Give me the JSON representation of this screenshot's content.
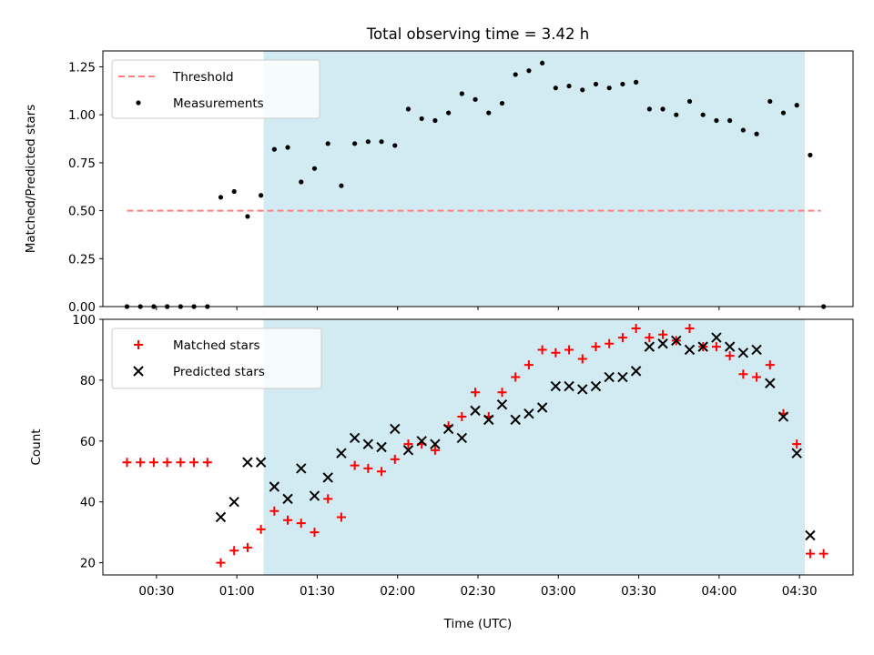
{
  "chart_data": [
    {
      "type": "scatter",
      "title": "Total observing time = 3.42 h",
      "ylabel": "Matched/Predicted stars",
      "xlabel": "",
      "ylim": [
        0,
        1.333
      ],
      "yticks": [
        "0.00",
        "0.25",
        "0.50",
        "0.75",
        "1.00",
        "1.25"
      ],
      "shaded_span": {
        "start": "01:10",
        "end": "04:32",
        "color": "#add8e6"
      },
      "threshold": {
        "name": "Threshold",
        "value": 0.5,
        "start": "00:19",
        "end": "04:38",
        "color": "#ff7f7f",
        "style": "dashed"
      },
      "legend_position": "upper-left",
      "legend": [
        "Threshold",
        "Measurements"
      ],
      "series": [
        {
          "name": "Measurements",
          "marker": "dot",
          "color": "#000000",
          "x": [
            "00:19",
            "00:24",
            "00:29",
            "00:34",
            "00:39",
            "00:44",
            "00:49",
            "00:54",
            "00:59",
            "01:04",
            "01:09",
            "01:14",
            "01:19",
            "01:24",
            "01:29",
            "01:34",
            "01:39",
            "01:44",
            "01:49",
            "01:54",
            "01:59",
            "02:04",
            "02:09",
            "02:14",
            "02:19",
            "02:24",
            "02:29",
            "02:34",
            "02:39",
            "02:44",
            "02:49",
            "02:54",
            "02:59",
            "03:04",
            "03:09",
            "03:14",
            "03:19",
            "03:24",
            "03:29",
            "03:34",
            "03:39",
            "03:44",
            "03:49",
            "03:54",
            "03:59",
            "04:04",
            "04:09",
            "04:14",
            "04:19",
            "04:24",
            "04:29",
            "04:34",
            "04:39"
          ],
          "values": [
            0,
            0,
            0,
            0,
            0,
            0,
            0,
            0.57,
            0.6,
            0.47,
            0.58,
            0.82,
            0.83,
            0.65,
            0.72,
            0.85,
            0.63,
            0.85,
            0.86,
            0.86,
            0.84,
            1.03,
            0.98,
            0.97,
            1.01,
            1.11,
            1.08,
            1.01,
            1.06,
            1.21,
            1.23,
            1.27,
            1.14,
            1.15,
            1.13,
            1.16,
            1.14,
            1.16,
            1.17,
            1.03,
            1.03,
            1.0,
            1.07,
            1.0,
            0.97,
            0.97,
            0.92,
            0.9,
            1.07,
            1.01,
            1.05,
            0.79,
            0
          ]
        }
      ]
    },
    {
      "type": "scatter",
      "title": "",
      "xlabel": "Time (UTC)",
      "ylabel": "Count",
      "ylim": [
        16,
        100
      ],
      "yticks": [
        "20",
        "40",
        "60",
        "80",
        "100"
      ],
      "xlim": [
        "00:10",
        "04:50"
      ],
      "xticks": [
        "00:30",
        "01:00",
        "01:30",
        "02:00",
        "02:30",
        "03:00",
        "03:30",
        "04:00",
        "04:30"
      ],
      "shaded_span": {
        "start": "01:10",
        "end": "04:32",
        "color": "#add8e6"
      },
      "legend_position": "upper-left",
      "legend": [
        "Matched stars",
        "Predicted stars"
      ],
      "series": [
        {
          "name": "Matched stars",
          "marker": "plus",
          "color": "#ff0000",
          "x": [
            "00:19",
            "00:24",
            "00:29",
            "00:34",
            "00:39",
            "00:44",
            "00:49",
            "00:54",
            "00:59",
            "01:04",
            "01:09",
            "01:14",
            "01:19",
            "01:24",
            "01:29",
            "01:34",
            "01:39",
            "01:44",
            "01:49",
            "01:54",
            "01:59",
            "02:04",
            "02:09",
            "02:14",
            "02:19",
            "02:24",
            "02:29",
            "02:34",
            "02:39",
            "02:44",
            "02:49",
            "02:54",
            "02:59",
            "03:04",
            "03:09",
            "03:14",
            "03:19",
            "03:24",
            "03:29",
            "03:34",
            "03:39",
            "03:44",
            "03:49",
            "03:54",
            "03:59",
            "04:04",
            "04:09",
            "04:14",
            "04:19",
            "04:24",
            "04:29",
            "04:34",
            "04:39"
          ],
          "values": [
            53,
            53,
            53,
            53,
            53,
            53,
            53,
            20,
            24,
            25,
            31,
            37,
            34,
            33,
            30,
            41,
            35,
            52,
            51,
            50,
            54,
            59,
            59,
            57,
            65,
            68,
            76,
            68,
            76,
            81,
            85,
            90,
            89,
            90,
            87,
            91,
            92,
            94,
            97,
            94,
            95,
            93,
            97,
            91,
            91,
            88,
            82,
            81,
            85,
            69,
            59,
            23,
            23
          ]
        },
        {
          "name": "Predicted stars",
          "marker": "x",
          "color": "#000000",
          "x": [
            "00:54",
            "00:59",
            "01:04",
            "01:09",
            "01:14",
            "01:19",
            "01:24",
            "01:29",
            "01:34",
            "01:39",
            "01:44",
            "01:49",
            "01:54",
            "01:59",
            "02:04",
            "02:09",
            "02:14",
            "02:19",
            "02:24",
            "02:29",
            "02:34",
            "02:39",
            "02:44",
            "02:49",
            "02:54",
            "02:59",
            "03:04",
            "03:09",
            "03:14",
            "03:19",
            "03:24",
            "03:29",
            "03:34",
            "03:39",
            "03:44",
            "03:49",
            "03:54",
            "03:59",
            "04:04",
            "04:09",
            "04:14",
            "04:19",
            "04:24",
            "04:29",
            "04:34"
          ],
          "values": [
            35,
            40,
            53,
            53,
            45,
            41,
            51,
            42,
            48,
            56,
            61,
            59,
            58,
            64,
            57,
            60,
            59,
            64,
            61,
            70,
            67,
            72,
            67,
            69,
            71,
            78,
            78,
            77,
            78,
            81,
            81,
            83,
            91,
            92,
            93,
            90,
            91,
            94,
            91,
            89,
            90,
            79,
            68,
            56,
            29
          ]
        }
      ]
    }
  ]
}
